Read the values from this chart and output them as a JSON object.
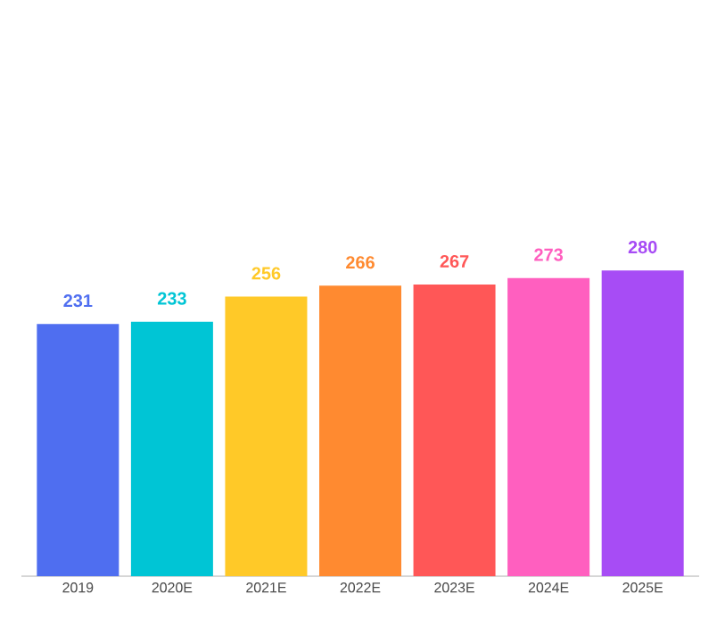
{
  "chart_data": {
    "type": "bar",
    "categories": [
      "2019",
      "2020E",
      "2021E",
      "2022E",
      "2023E",
      "2024E",
      "2025E"
    ],
    "values": [
      231,
      233,
      256,
      266,
      267,
      273,
      280
    ],
    "colors": [
      "#4f6ef0",
      "#00c5d5",
      "#ffc928",
      "#ff8a30",
      "#ff5757",
      "#ff5fbf",
      "#a74cf5"
    ],
    "data_labels": true
  }
}
